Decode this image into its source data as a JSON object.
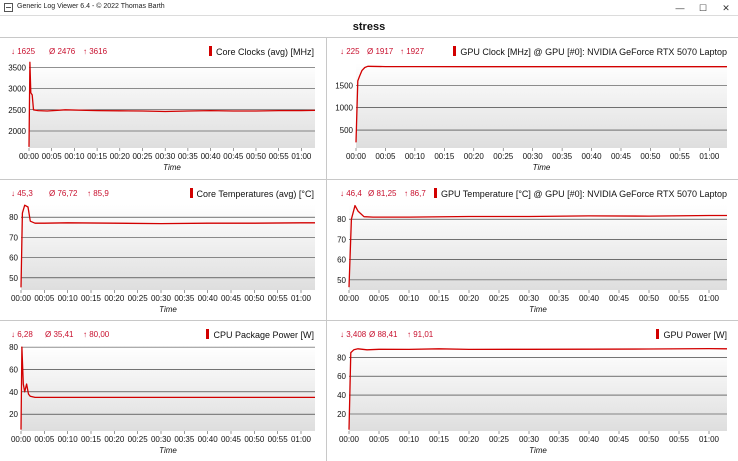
{
  "window": {
    "title": "Generic Log Viewer 6.4 - © 2022 Thomas Barth",
    "minimize": "—",
    "maximize": "☐",
    "close": "✕"
  },
  "header": {
    "title": "stress"
  },
  "colors": {
    "series": "#d20000",
    "stats": "#c8102e",
    "plot_bg_top": "#ffffff",
    "plot_bg_bottom": "#dedede"
  },
  "chart_data": [
    {
      "type": "line",
      "title": "Core Clocks (avg) [MHz]",
      "stats": {
        "min": "↓ 1625",
        "avg": "Ø 2476",
        "max": "↑ 3616"
      },
      "xlabel": "Time",
      "xticks": [
        "00:00",
        "00:05",
        "00:10",
        "00:15",
        "00:20",
        "00:25",
        "00:30",
        "00:35",
        "00:40",
        "00:45",
        "00:50",
        "00:55",
        "01:00"
      ],
      "yticks": [
        "3500",
        "3000",
        "2500",
        "2000"
      ],
      "ytick_values": [
        3500,
        3000,
        2500,
        2000
      ],
      "ylim": [
        1600,
        3600
      ],
      "xlim": [
        0,
        63
      ],
      "series": [
        {
          "x": [
            0,
            0.2,
            0.4,
            0.7,
            1,
            1.5,
            2,
            4,
            8,
            15,
            20,
            25,
            30,
            35,
            40,
            45,
            50,
            55,
            60,
            63
          ],
          "values": [
            1625,
            3616,
            2900,
            2850,
            2500,
            2490,
            2480,
            2470,
            2500,
            2480,
            2475,
            2470,
            2460,
            2470,
            2480,
            2470,
            2470,
            2480,
            2480,
            2485
          ]
        }
      ]
    },
    {
      "type": "line",
      "title": "GPU Clock [MHz] @ GPU [#0]: NVIDIA GeForce RTX 5070 Laptop",
      "stats": {
        "min": "↓ 225",
        "avg": "Ø 1917",
        "max": "↑ 1927"
      },
      "xlabel": "Time",
      "xticks": [
        "00:00",
        "00:05",
        "00:10",
        "00:15",
        "00:20",
        "00:25",
        "00:30",
        "00:35",
        "00:40",
        "00:45",
        "00:50",
        "00:55",
        "01:00"
      ],
      "yticks": [
        "1500",
        "1000",
        "500"
      ],
      "ytick_values": [
        1500,
        1000,
        500
      ],
      "ylim": [
        100,
        2000
      ],
      "xlim": [
        0,
        63
      ],
      "series": [
        {
          "x": [
            0,
            0.3,
            0.6,
            1,
            1.5,
            2,
            5,
            10,
            20,
            30,
            40,
            50,
            60,
            63
          ],
          "values": [
            225,
            1600,
            1700,
            1830,
            1900,
            1927,
            1920,
            1920,
            1918,
            1918,
            1917,
            1917,
            1917,
            1918
          ]
        }
      ]
    },
    {
      "type": "line",
      "title": "Core Temperatures (avg) [°C]",
      "stats": {
        "min": "↓ 45,3",
        "avg": "Ø 76,72",
        "max": "↑ 85,9"
      },
      "xlabel": "Time",
      "xticks": [
        "00:00",
        "00:05",
        "00:10",
        "00:15",
        "00:20",
        "00:25",
        "00:30",
        "00:35",
        "00:40",
        "00:45",
        "00:50",
        "00:55",
        "01:00"
      ],
      "yticks": [
        "80",
        "70",
        "60",
        "50"
      ],
      "ytick_values": [
        80,
        70,
        60,
        50
      ],
      "ylim": [
        44,
        86
      ],
      "xlim": [
        0,
        63
      ],
      "series": [
        {
          "x": [
            0,
            0.3,
            0.8,
            1.5,
            2,
            3,
            5,
            10,
            20,
            30,
            40,
            50,
            60,
            63
          ],
          "values": [
            45.3,
            82,
            85.9,
            85,
            78,
            77,
            77,
            77.2,
            77,
            76.8,
            77,
            77,
            77.2,
            77.2
          ]
        }
      ]
    },
    {
      "type": "line",
      "title": "GPU Temperature [°C] @ GPU [#0]: NVIDIA GeForce RTX 5070 Laptop",
      "stats": {
        "min": "↓ 46,4",
        "avg": "Ø 81,25",
        "max": "↑ 86,7"
      },
      "xlabel": "Time",
      "xticks": [
        "00:00",
        "00:05",
        "00:10",
        "00:15",
        "00:20",
        "00:25",
        "00:30",
        "00:35",
        "00:40",
        "00:45",
        "00:50",
        "00:55",
        "01:00"
      ],
      "yticks": [
        "80",
        "70",
        "60",
        "50"
      ],
      "ytick_values": [
        80,
        70,
        60,
        50
      ],
      "ylim": [
        45,
        87
      ],
      "xlim": [
        0,
        63
      ],
      "series": [
        {
          "x": [
            0,
            0.4,
            1,
            1.5,
            2.5,
            4,
            10,
            20,
            30,
            40,
            50,
            60,
            63
          ],
          "values": [
            46.4,
            80,
            86.7,
            84,
            81.2,
            81,
            81,
            81.3,
            81.3,
            81.6,
            81.5,
            81.8,
            81.8
          ]
        }
      ]
    },
    {
      "type": "line",
      "title": "CPU Package Power [W]",
      "stats": {
        "min": "↓ 6,28",
        "avg": "Ø 35,41",
        "max": "↑ 80,00"
      },
      "xlabel": "Time",
      "xticks": [
        "00:00",
        "00:05",
        "00:10",
        "00:15",
        "00:20",
        "00:25",
        "00:30",
        "00:35",
        "00:40",
        "00:45",
        "00:50",
        "00:55",
        "01:00"
      ],
      "yticks": [
        "80",
        "60",
        "40",
        "20"
      ],
      "ytick_values": [
        80,
        60,
        40,
        20
      ],
      "ylim": [
        5,
        81
      ],
      "xlim": [
        0,
        63
      ],
      "series": [
        {
          "x": [
            0,
            0.2,
            0.5,
            0.8,
            1.2,
            1.6,
            2,
            3,
            10,
            20,
            30,
            40,
            50,
            60,
            63
          ],
          "values": [
            6.28,
            80,
            47,
            40,
            47,
            38,
            36,
            35,
            35,
            35,
            35,
            35,
            35,
            35,
            35
          ]
        }
      ]
    },
    {
      "type": "line",
      "title": "GPU Power [W]",
      "stats": {
        "min": "↓ 3,408",
        "avg": "Ø 88,41",
        "max": "↑ 91,01"
      },
      "xlabel": "Time",
      "xticks": [
        "00:00",
        "00:05",
        "00:10",
        "00:15",
        "00:20",
        "00:25",
        "00:30",
        "00:35",
        "00:40",
        "00:45",
        "00:50",
        "00:55",
        "01:00"
      ],
      "yticks": [
        "80",
        "60",
        "40",
        "20"
      ],
      "ytick_values": [
        80,
        60,
        40,
        20
      ],
      "ylim": [
        2,
        92
      ],
      "xlim": [
        0,
        63
      ],
      "series": [
        {
          "x": [
            0,
            0.3,
            0.8,
            1.5,
            3,
            5,
            10,
            15,
            20,
            30,
            40,
            50,
            60,
            63
          ],
          "values": [
            3.408,
            85,
            88,
            89,
            88,
            88.5,
            88.4,
            89,
            88.4,
            88.5,
            88.6,
            88.8,
            89.2,
            89.0
          ]
        }
      ]
    }
  ]
}
